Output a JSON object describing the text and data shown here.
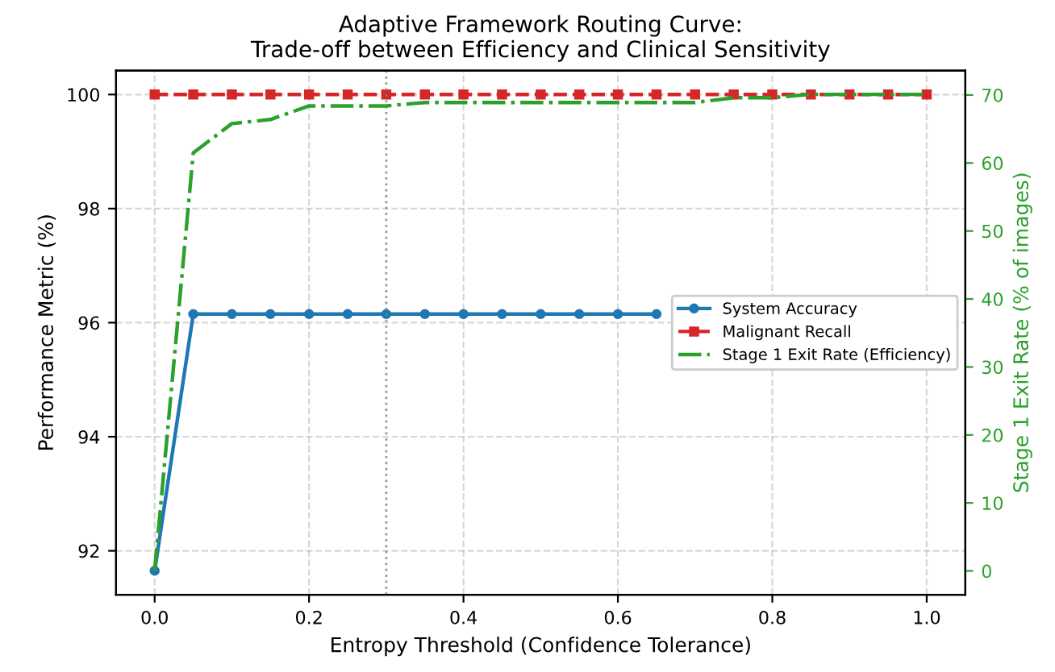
{
  "chart_data": {
    "type": "line",
    "title": "Adaptive Framework Routing Curve:\nTrade-off between Efficiency and Clinical Sensitivity",
    "xlabel": "Entropy Threshold (Confidence Tolerance)",
    "ylabel": "Performance Metric (%)",
    "y2label": "Stage 1 Exit Rate (% of images)",
    "x": [
      0.0,
      0.05,
      0.1,
      0.15,
      0.2,
      0.25,
      0.3,
      0.35,
      0.4,
      0.45,
      0.5,
      0.55,
      0.6,
      0.65,
      0.7,
      0.75,
      0.8,
      0.85,
      0.9,
      0.95,
      1.0
    ],
    "series": [
      {
        "name": "System Accuracy",
        "color": "#1f77b4",
        "marker": "circle",
        "line_style": "solid",
        "values": [
          91.65,
          96.15,
          96.15,
          96.15,
          96.15,
          96.15,
          96.15,
          96.15,
          96.15,
          96.15,
          96.15,
          96.15,
          96.15,
          96.15,
          null,
          null,
          null,
          null,
          null,
          null,
          null
        ]
      },
      {
        "name": "Malignant Recall",
        "color": "#d62728",
        "marker": "square",
        "line_style": "dashed",
        "values": [
          100,
          100,
          100,
          100,
          100,
          100,
          100,
          100,
          100,
          100,
          100,
          100,
          100,
          100,
          100,
          100,
          100,
          100,
          100,
          100,
          100
        ]
      },
      {
        "name": "Stage 1 Exit Rate (Efficiency)",
        "color": "#2ca02c",
        "marker": "none",
        "line_style": "dashdot",
        "axis": "y2",
        "values": [
          0,
          61.5,
          65.8,
          66.4,
          68.4,
          68.4,
          68.4,
          68.9,
          68.9,
          68.9,
          68.9,
          68.9,
          68.9,
          68.9,
          68.9,
          69.6,
          69.6,
          70.1,
          70.1,
          70.1,
          70.1
        ]
      }
    ],
    "xlim": [
      -0.05,
      1.05
    ],
    "xticks": [
      {
        "value": 0.0,
        "label": "0.0"
      },
      {
        "value": 0.2,
        "label": "0.2"
      },
      {
        "value": 0.4,
        "label": "0.4"
      },
      {
        "value": 0.6,
        "label": "0.6"
      },
      {
        "value": 0.8,
        "label": "0.8"
      },
      {
        "value": 1.0,
        "label": "1.0"
      }
    ],
    "ylim": [
      91.23,
      100.42
    ],
    "yticks": [
      92,
      94,
      96,
      98,
      100
    ],
    "y2lim": [
      -3.5,
      73.6
    ],
    "y2ticks": [
      0,
      10,
      20,
      30,
      40,
      50,
      60,
      70
    ],
    "ref_lines": [
      {
        "axis": "x",
        "value": 0.3,
        "label": null,
        "color": "#808080",
        "line_style": "dotted"
      }
    ],
    "grid": true,
    "legend": "center right"
  }
}
